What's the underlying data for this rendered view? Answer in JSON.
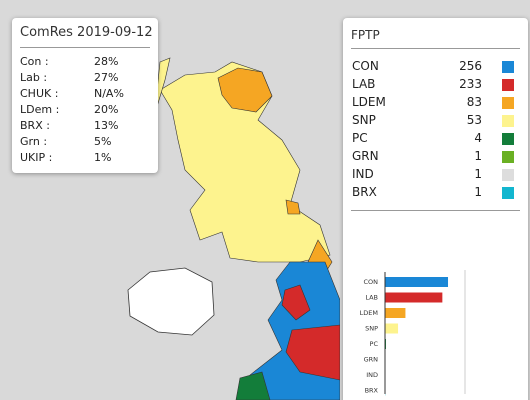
{
  "poll": {
    "title": "ComRes 2019-09-12",
    "rows": [
      {
        "party": "Con :",
        "value": "28%"
      },
      {
        "party": "Lab :",
        "value": "27%"
      },
      {
        "party": "CHUK :",
        "value": "N/A%"
      },
      {
        "party": "LDem :",
        "value": "20%"
      },
      {
        "party": "BRX :",
        "value": "13%"
      },
      {
        "party": "Grn :",
        "value": "5%"
      },
      {
        "party": "UKIP :",
        "value": "1%"
      }
    ]
  },
  "fptp": {
    "title": "FPTP",
    "rows": [
      {
        "party": "CON",
        "seats": 256,
        "color": "#1a87d6"
      },
      {
        "party": "LAB",
        "seats": 233,
        "color": "#d42a2a"
      },
      {
        "party": "LDEM",
        "seats": 83,
        "color": "#f5a623"
      },
      {
        "party": "SNP",
        "seats": 53,
        "color": "#fdf38e"
      },
      {
        "party": "PC",
        "seats": 4,
        "color": "#137d3a"
      },
      {
        "party": "GRN",
        "seats": 1,
        "color": "#6ab023"
      },
      {
        "party": "IND",
        "seats": 1,
        "color": "#dddddd"
      },
      {
        "party": "BRX",
        "seats": 1,
        "color": "#12b6cf"
      }
    ]
  },
  "chart": {
    "type": "bar",
    "xlim": [
      0,
      325
    ],
    "xticks": [
      325
    ]
  }
}
